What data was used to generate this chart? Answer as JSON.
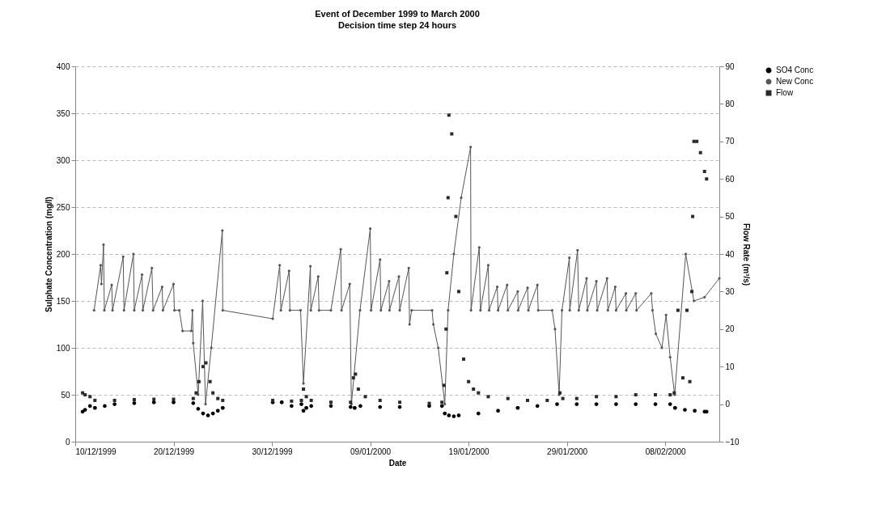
{
  "chart_data": {
    "type": "line",
    "title": "Event of December 1999 to March 2000",
    "subtitle": "Decision time step 24 hours",
    "xlabel": "Date",
    "ylabel": "Sulphate Concentration (mg/l)",
    "y2label": "Flow Rate (m³/s)",
    "xlim": [
      "1999-12-10",
      "2000-02-13T12:00"
    ],
    "xticks": [
      {
        "value": "1999-12-10",
        "label": "10/12/1999"
      },
      {
        "value": "1999-12-20",
        "label": "20/12/1999"
      },
      {
        "value": "1999-12-30",
        "label": "30/12/1999"
      },
      {
        "value": "2000-01-09",
        "label": "09/01/2000"
      },
      {
        "value": "2000-01-19",
        "label": "19/01/2000"
      },
      {
        "value": "2000-01-29",
        "label": "29/01/2000"
      },
      {
        "value": "2000-02-08",
        "label": "08/02/2000"
      }
    ],
    "ylim": [
      0,
      400
    ],
    "yticks": [
      0,
      50,
      100,
      150,
      200,
      250,
      300,
      350,
      400
    ],
    "y2lim": [
      -10,
      90
    ],
    "y2ticks": [
      -10,
      0,
      10,
      20,
      30,
      40,
      50,
      60,
      70,
      80,
      90
    ],
    "grid": "y",
    "legend": "right",
    "series": [
      {
        "name": "SO4 Conc",
        "type": "scatter",
        "marker": "circle",
        "color": "#000000",
        "x": [
          "1999-12-10T18:00",
          "1999-12-11",
          "1999-12-11T12:00",
          "1999-12-12",
          "1999-12-13",
          "1999-12-14",
          "1999-12-16",
          "1999-12-18",
          "1999-12-20",
          "1999-12-22",
          "1999-12-22T12:00",
          "1999-12-23",
          "1999-12-23T12:00",
          "1999-12-24",
          "1999-12-24T12:00",
          "1999-12-25",
          "1999-12-30T02:00",
          "1999-12-31",
          "2000-01-01",
          "2000-01-02",
          "2000-01-02T05:00",
          "2000-01-02T12:00",
          "2000-01-03",
          "2000-01-05",
          "2000-01-07",
          "2000-01-07T10:00",
          "2000-01-08",
          "2000-01-10",
          "2000-01-12",
          "2000-01-15",
          "2000-01-16T07:00",
          "2000-01-16T14:00",
          "2000-01-17",
          "2000-01-17T12:00",
          "2000-01-18",
          "2000-01-20",
          "2000-01-22",
          "2000-01-24",
          "2000-01-26",
          "2000-01-28",
          "2000-01-30",
          "2000-02-01",
          "2000-02-03",
          "2000-02-05",
          "2000-02-07",
          "2000-02-08T12:00",
          "2000-02-09",
          "2000-02-10",
          "2000-02-11",
          "2000-02-12",
          "2000-02-12T05:00"
        ],
        "values": [
          32,
          34,
          38,
          36,
          38,
          40,
          41,
          42,
          42,
          41,
          35,
          30,
          28,
          30,
          33,
          36,
          42,
          42,
          38,
          40,
          33,
          36,
          38,
          38,
          37,
          36,
          38,
          37,
          37,
          38,
          38,
          30,
          28,
          27,
          28,
          30,
          33,
          36,
          38,
          40,
          40,
          40,
          40,
          40,
          40,
          40,
          36,
          34,
          33,
          32,
          32
        ]
      },
      {
        "name": "New Conc",
        "marker": "circle",
        "color": "#555555",
        "x": [
          "1999-12-11T22:00",
          "1999-12-12T14:00",
          "1999-12-12T16:00",
          "1999-12-12T21:00",
          "1999-12-12T23:00",
          "1999-12-13T17:00",
          "1999-12-13T19:00",
          "1999-12-14T21:00",
          "1999-12-14T23:00",
          "1999-12-15T22:00",
          "1999-12-16",
          "1999-12-16T19:00",
          "1999-12-16T21:00",
          "1999-12-17T19:00",
          "1999-12-17T22:00",
          "1999-12-18T20:00",
          "1999-12-18T22:00",
          "1999-12-20",
          "1999-12-20T02:00",
          "1999-12-20T14:00",
          "1999-12-20T22:00",
          "1999-12-21T19:00",
          "1999-12-21T22:00",
          "1999-12-22",
          "1999-12-22T12:00",
          "1999-12-22T23:00",
          "1999-12-23T06:00",
          "1999-12-23T20:00",
          "1999-12-24T23:00",
          "1999-12-25",
          "1999-12-30T02:00",
          "1999-12-30T19:00",
          "1999-12-30T22:00",
          "1999-12-31T18:00",
          "1999-12-31T20:00",
          "2000-01-01T22:00",
          "2000-01-02T05:00",
          "2000-01-02T22:00",
          "2000-01-02T23:00",
          "2000-01-03T17:00",
          "2000-01-03T19:00",
          "2000-01-05",
          "2000-01-06",
          "2000-01-06T02:00",
          "2000-01-06T22:00",
          "2000-01-07T02:00",
          "2000-01-07T23:00",
          "2000-01-09",
          "2000-01-09T02:00",
          "2000-01-10",
          "2000-01-10T02:00",
          "2000-01-10T22:00",
          "2000-01-10T23:00",
          "2000-01-11T22:00",
          "2000-01-12",
          "2000-01-12T22:00",
          "2000-01-13",
          "2000-01-13T05:00",
          "2000-01-15T07:00",
          "2000-01-15T10:00",
          "2000-01-15T22:00",
          "2000-01-16T14:00",
          "2000-01-16T22:00",
          "2000-01-17T12:00",
          "2000-01-18T06:00",
          "2000-01-19T05:00",
          "2000-01-19T06:00",
          "2000-01-20T02:00",
          "2000-01-20T05:00",
          "2000-01-21",
          "2000-01-21T02:00",
          "2000-01-21T22:00",
          "2000-01-22",
          "2000-01-22T22:00",
          "2000-01-23",
          "2000-01-24",
          "2000-01-24T01:00",
          "2000-01-25",
          "2000-01-25T02:00",
          "2000-01-26",
          "2000-01-26T02:00",
          "2000-01-27T12:00",
          "2000-01-27T19:00",
          "2000-01-28T05:00",
          "2000-01-28T12:00",
          "2000-01-29T06:00",
          "2000-01-29T07:00",
          "2000-01-30T02:00",
          "2000-01-30T05:00",
          "2000-01-31",
          "2000-01-31T02:00",
          "2000-02-01",
          "2000-02-01T02:00",
          "2000-02-02T02:00",
          "2000-02-02T04:00",
          "2000-02-02T22:00",
          "2000-02-03",
          "2000-02-04",
          "2000-02-04T01:00",
          "2000-02-05",
          "2000-02-05T02:00",
          "2000-02-06T14:00",
          "2000-02-06T17:00",
          "2000-02-07T01:00",
          "2000-02-07T16:00",
          "2000-02-08T02:00",
          "2000-02-08T12:00",
          "2000-02-08T23:00",
          "2000-02-10T02:00",
          "2000-02-10T22:00",
          "2000-02-12",
          "2000-02-13T12:00"
        ],
        "values": [
          140,
          188,
          168,
          210,
          140,
          167,
          140,
          197,
          140,
          200,
          140,
          178,
          140,
          185,
          140,
          165,
          140,
          168,
          140,
          140,
          118,
          118,
          140,
          105,
          50,
          150,
          40,
          100,
          225,
          140,
          131,
          188,
          140,
          182,
          140,
          140,
          62,
          187,
          140,
          176,
          140,
          140,
          205,
          140,
          168,
          40,
          140,
          227,
          140,
          194,
          140,
          171,
          140,
          176,
          140,
          185,
          125,
          140,
          140,
          125,
          100,
          40,
          140,
          200,
          260,
          314,
          140,
          207,
          140,
          188,
          140,
          165,
          140,
          167,
          140,
          160,
          140,
          164,
          140,
          167,
          140,
          140,
          120,
          50,
          140,
          196,
          140,
          204,
          140,
          174,
          140,
          171,
          140,
          174,
          140,
          165,
          140,
          158,
          140,
          158,
          140,
          158,
          140,
          115,
          100,
          135,
          90,
          50,
          200,
          150,
          154,
          174
        ]
      },
      {
        "name": "Flow",
        "type": "scatter",
        "marker": "square",
        "axis": "y2",
        "color": "#2a2a2a",
        "x": [
          "1999-12-10T18:00",
          "1999-12-11",
          "1999-12-11T12:00",
          "1999-12-12",
          "1999-12-14",
          "1999-12-16",
          "1999-12-18",
          "1999-12-20",
          "1999-12-22",
          "1999-12-22T07:00",
          "1999-12-22T14:00",
          "1999-12-23",
          "1999-12-23T07:00",
          "1999-12-23T17:00",
          "1999-12-24",
          "1999-12-24T12:00",
          "1999-12-25",
          "1999-12-30T02:00",
          "2000-01-01",
          "2000-01-02",
          "2000-01-02T05:00",
          "2000-01-02T12:00",
          "2000-01-03",
          "2000-01-05",
          "2000-01-07",
          "2000-01-07T07:00",
          "2000-01-07T12:00",
          "2000-01-07T19:00",
          "2000-01-08T12:00",
          "2000-01-10",
          "2000-01-12",
          "2000-01-15",
          "2000-01-16T07:00",
          "2000-01-16T12:00",
          "2000-01-16T17:00",
          "2000-01-16T19:00",
          "2000-01-16T22:00",
          "2000-01-17",
          "2000-01-17T07:00",
          "2000-01-17T17:00",
          "2000-01-18",
          "2000-01-18T12:00",
          "2000-01-19",
          "2000-01-19T12:00",
          "2000-01-20",
          "2000-01-21",
          "2000-01-23",
          "2000-01-25",
          "2000-01-27",
          "2000-01-28T07:00",
          "2000-01-28T14:00",
          "2000-01-30",
          "2000-02-01",
          "2000-02-03",
          "2000-02-05",
          "2000-02-07",
          "2000-02-08T12:00",
          "2000-02-08T22:00",
          "2000-02-09T07:00",
          "2000-02-09T19:00",
          "2000-02-10T05:00",
          "2000-02-10T12:00",
          "2000-02-10T17:00",
          "2000-02-10T19:00",
          "2000-02-10T22:00",
          "2000-02-11T05:00",
          "2000-02-11T14:00",
          "2000-02-12",
          "2000-02-12T05:00"
        ],
        "values": [
          3,
          2.5,
          2,
          1,
          1,
          1.2,
          1.3,
          1.3,
          1.5,
          3,
          6,
          10,
          11,
          6,
          3,
          1.5,
          1,
          1,
          0.8,
          1,
          4,
          2,
          1,
          0.5,
          0.5,
          7,
          8,
          4,
          2,
          1,
          0.5,
          0.2,
          0.5,
          5,
          20,
          35,
          55,
          77,
          72,
          50,
          30,
          12,
          6,
          4,
          3,
          2,
          1.5,
          1,
          1,
          3,
          1.5,
          1.5,
          2,
          2,
          2.5,
          2.5,
          2.5,
          3,
          25,
          7,
          25,
          6,
          30,
          50,
          70,
          70,
          67,
          62,
          60
        ]
      }
    ]
  }
}
